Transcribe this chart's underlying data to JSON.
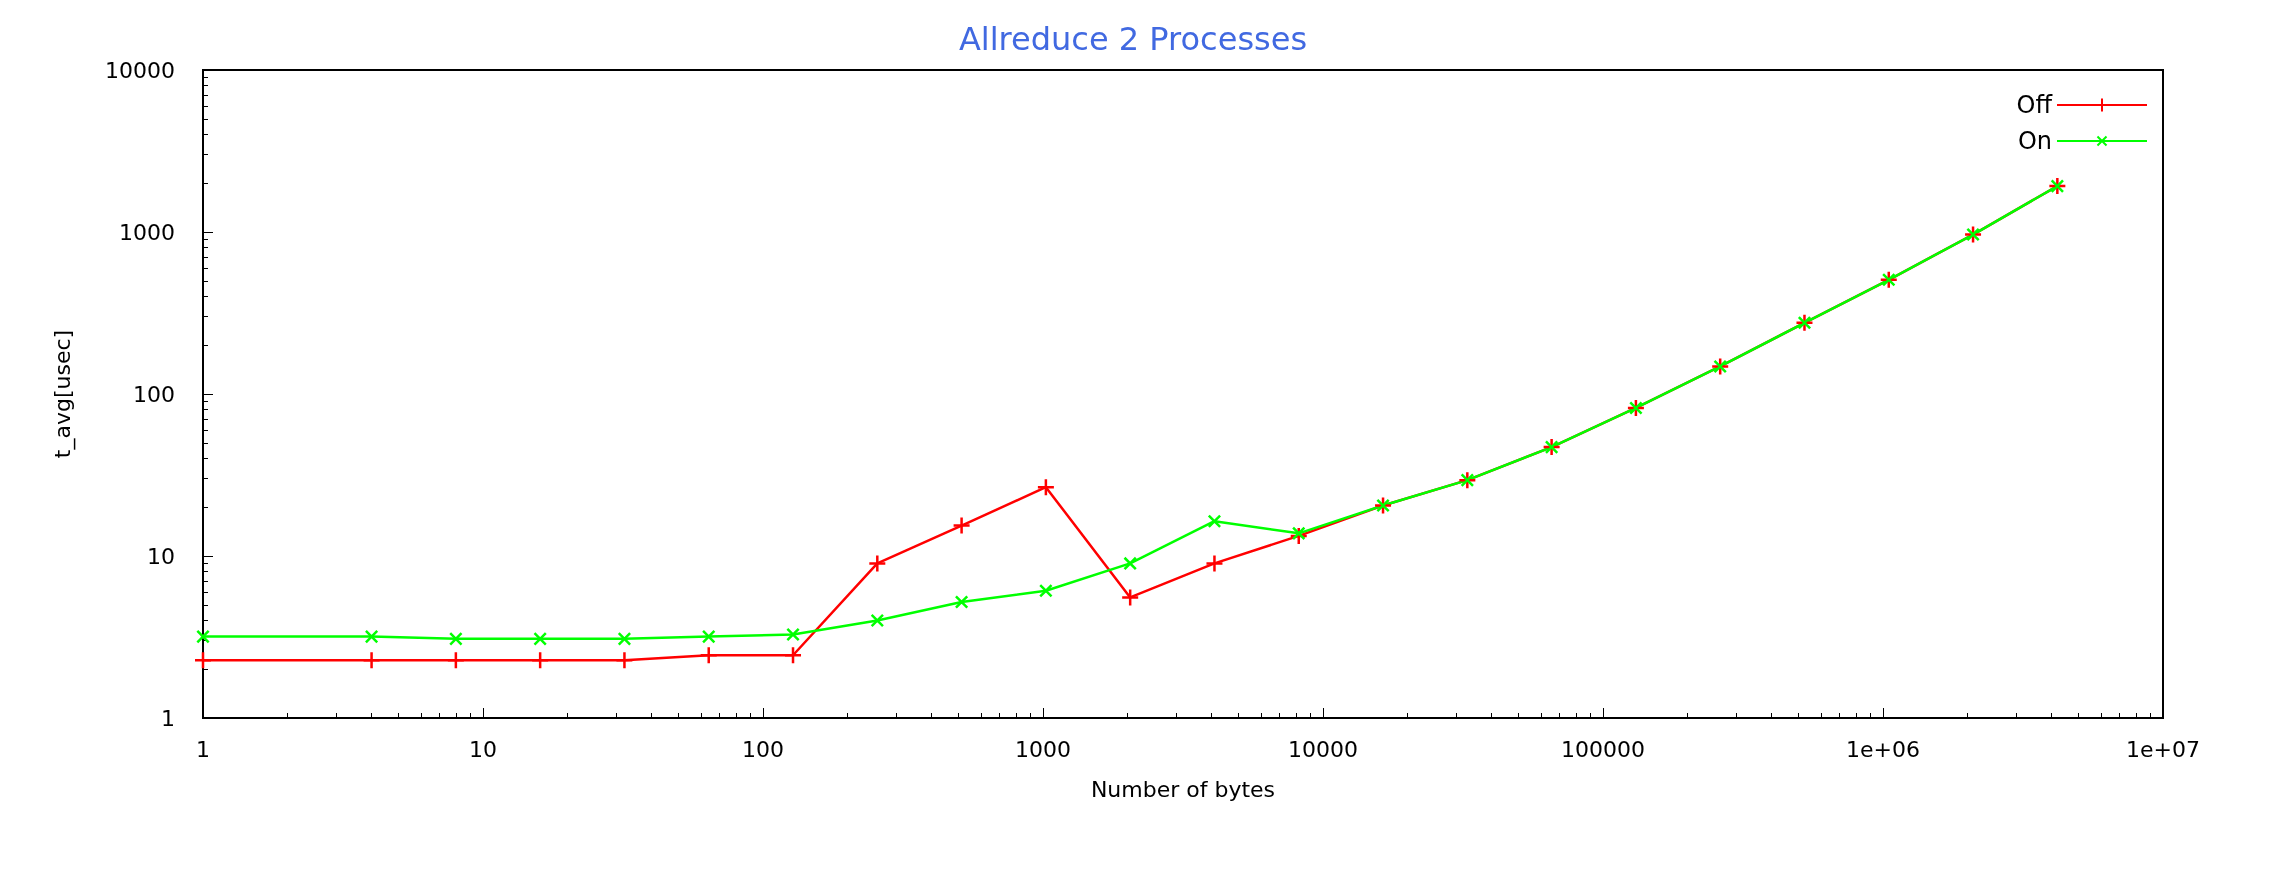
{
  "chart_data": {
    "type": "line",
    "title": "Allreduce 2 Processes",
    "xlabel": "Number of bytes",
    "ylabel": "t_avg[usec]",
    "log": "xy",
    "xlim": [
      1,
      10000000
    ],
    "ylim": [
      1,
      10000
    ],
    "xticks": [
      1,
      10,
      100,
      1000,
      10000,
      100000,
      {
        "value": 1000000,
        "label": "1e+06"
      },
      {
        "value": 10000000,
        "label": "1e+07"
      }
    ],
    "yticks": [
      1,
      10,
      100,
      1000,
      10000
    ],
    "x": [
      1,
      4,
      8,
      16,
      32,
      64,
      128,
      256,
      512,
      1024,
      2048,
      4096,
      8192,
      16384,
      32768,
      65536,
      131072,
      262144,
      524288,
      1048576,
      2097152,
      4194304
    ],
    "series": [
      {
        "name": "Off",
        "color": "#ff0000",
        "values": [
          2.27,
          2.27,
          2.27,
          2.27,
          2.27,
          2.44,
          2.44,
          9.0,
          15.4,
          26.6,
          5.55,
          9.0,
          13.3,
          20.5,
          29.4,
          47,
          82,
          148,
          275,
          507,
          964,
          1920
        ]
      },
      {
        "name": "On",
        "color": "#00ff00",
        "values": [
          3.18,
          3.18,
          3.08,
          3.08,
          3.08,
          3.18,
          3.28,
          4.0,
          5.2,
          6.1,
          9.0,
          16.4,
          13.8,
          20.5,
          29.4,
          47,
          82,
          148,
          275,
          507,
          964,
          1920
        ]
      }
    ],
    "marker": "cross",
    "line_style": "solid",
    "legend": "top right",
    "grid": false
  }
}
